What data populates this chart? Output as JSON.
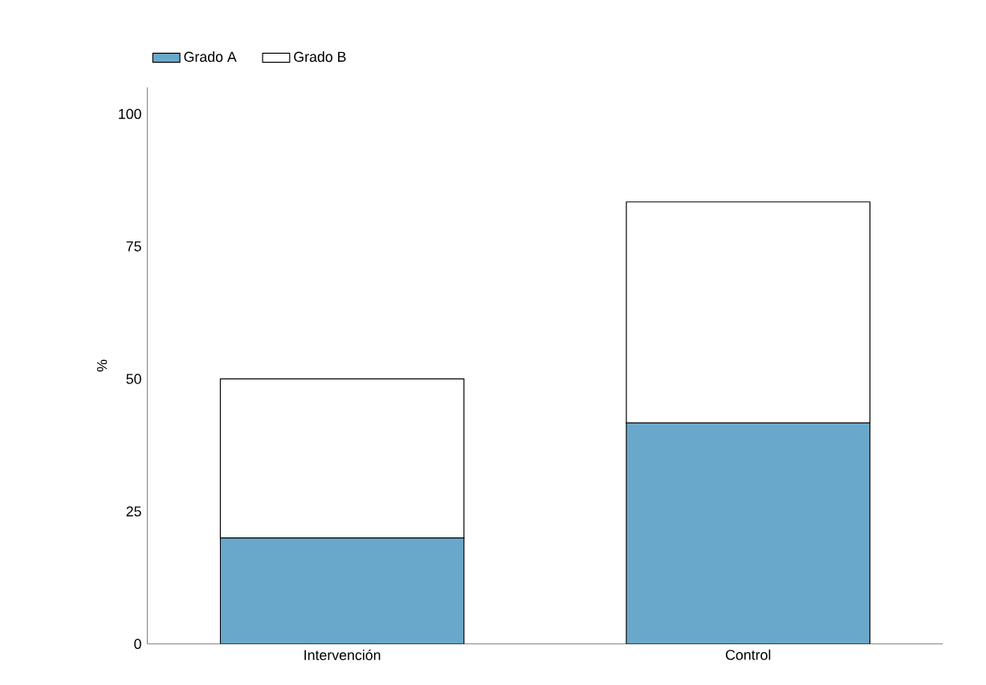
{
  "chart_data": {
    "type": "bar",
    "stacked": true,
    "ylabel": "%",
    "categories": [
      "Intervención",
      "Control"
    ],
    "series": [
      {
        "name": "Grado A",
        "color": "#6aa8cb",
        "values": [
          20,
          41.7
        ]
      },
      {
        "name": "Grado B",
        "color": "#ffffff",
        "values": [
          30,
          41.7
        ]
      }
    ],
    "ylim": [
      0,
      105
    ],
    "yticks": [
      0,
      25,
      50,
      75,
      100
    ],
    "legend": "top left",
    "grid": false
  }
}
